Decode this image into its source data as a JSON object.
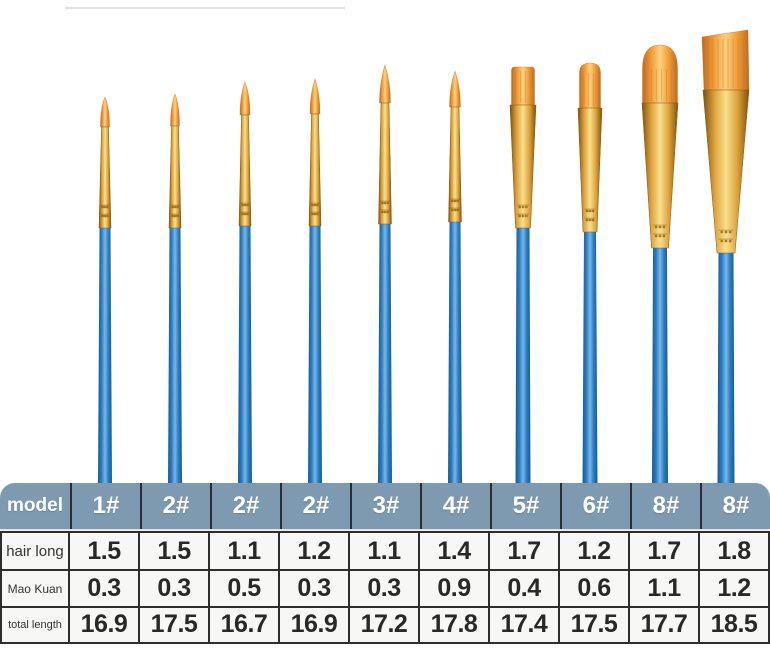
{
  "table": {
    "header_label": "model",
    "models": [
      "1#",
      "2#",
      "2#",
      "2#",
      "3#",
      "4#",
      "5#",
      "6#",
      "8#",
      "8#"
    ],
    "rows": [
      {
        "label": "hair long",
        "values": [
          "1.5",
          "1.5",
          "1.1",
          "1.2",
          "1.1",
          "1.4",
          "1.7",
          "1.2",
          "1.7",
          "1.8"
        ]
      },
      {
        "label": "Mao Kuan",
        "values": [
          "0.3",
          "0.3",
          "0.5",
          "0.3",
          "0.3",
          "0.9",
          "0.4",
          "0.6",
          "1.1",
          "1.2"
        ]
      },
      {
        "label": "total length",
        "values": [
          "16.9",
          "17.5",
          "16.7",
          "16.9",
          "17.2",
          "17.8",
          "17.4",
          "17.5",
          "17.7",
          "18.5"
        ]
      }
    ],
    "colors": {
      "header_bg": "#7d9ab0",
      "header_text": "#ffffff",
      "cell_bg": "#f7f7f5",
      "border": "#2d2d2d",
      "value_text": "#282828"
    }
  },
  "brushes": {
    "items": [
      {
        "model": "1#",
        "shape": "round pointed"
      },
      {
        "model": "2#",
        "shape": "round pointed"
      },
      {
        "model": "2#",
        "shape": "round pointed"
      },
      {
        "model": "2#",
        "shape": "round pointed"
      },
      {
        "model": "3#",
        "shape": "round pointed"
      },
      {
        "model": "4#",
        "shape": "round pointed"
      },
      {
        "model": "5#",
        "shape": "flat shader"
      },
      {
        "model": "6#",
        "shape": "bright rounded"
      },
      {
        "model": "8#",
        "shape": "filbert"
      },
      {
        "model": "8#",
        "shape": "flat wash"
      }
    ],
    "colors": {
      "handle_blue": "#2a7cc0",
      "ferrule_gold": "#dda13a",
      "bristle_orange": "#ef9c3a"
    }
  }
}
